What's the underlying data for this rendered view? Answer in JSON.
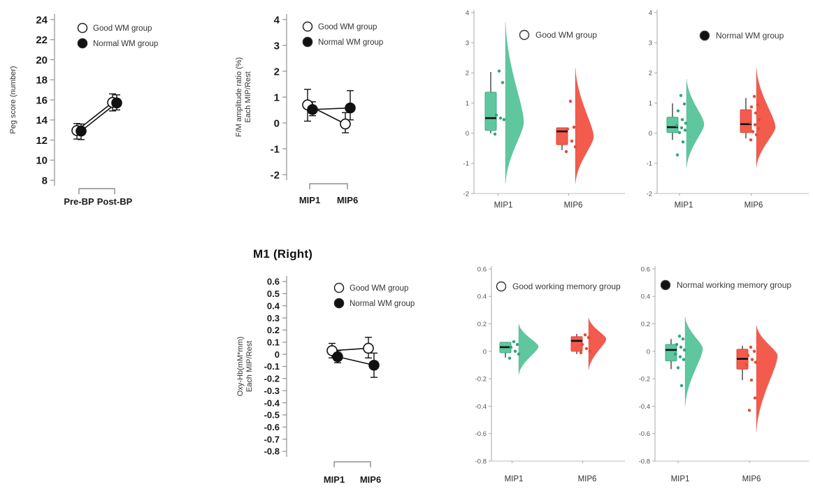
{
  "palette": {
    "green": "#5EC79E",
    "green_dark": "#43A983",
    "green_point": "#33A47B",
    "red": "#F35B4D",
    "red_dark": "#D8483B",
    "red_point": "#E24B3B",
    "marker_black": "#111111",
    "axis_gray": "#999999"
  },
  "chart_data": [
    {
      "id": "peg_score",
      "type": "line-error",
      "title": "",
      "ylabel_lines": [
        "Peg score (number)"
      ],
      "ylim": [
        8,
        24
      ],
      "ytick_values": [
        24,
        22,
        20,
        18,
        16,
        14,
        12,
        10,
        8
      ],
      "ytick_labels": [
        "24",
        "22",
        "20",
        "18",
        "16",
        "14",
        "12",
        "10",
        "8"
      ],
      "categories": [
        "Pre-BP",
        "Post-BP"
      ],
      "legend": [
        {
          "label": "Good WM group",
          "marker": "open"
        },
        {
          "label": "Normal WM group",
          "marker": "filled"
        }
      ],
      "series": [
        {
          "name": "Good WM group",
          "marker": "open",
          "values": [
            12.95,
            15.75
          ],
          "err_lo": [
            12.1,
            14.9
          ],
          "err_hi": [
            13.65,
            16.6
          ]
        },
        {
          "name": "Normal WM group",
          "marker": "filled",
          "values": [
            12.9,
            15.7
          ],
          "err_lo": [
            12.05,
            15.0
          ],
          "err_hi": [
            13.6,
            16.5
          ]
        }
      ]
    },
    {
      "id": "fm_ratio",
      "type": "line-error",
      "title": "",
      "ylabel_lines": [
        "F/M amplitude ratio (%)",
        "Each MIP/Rest"
      ],
      "ylim": [
        -2,
        4
      ],
      "ytick_values": [
        4,
        3,
        2,
        1,
        0,
        -1,
        -2
      ],
      "ytick_labels": [
        "4",
        "3",
        "2",
        "1",
        "0",
        "-1",
        "-2"
      ],
      "categories": [
        "MIP1",
        "MIP6"
      ],
      "legend": [
        {
          "label": "Good WM group",
          "marker": "open"
        },
        {
          "label": "Normal WM group",
          "marker": "filled"
        }
      ],
      "series": [
        {
          "name": "Good WM group",
          "marker": "open",
          "values": [
            0.7,
            -0.04
          ],
          "err_lo": [
            0.07,
            -0.38
          ],
          "err_hi": [
            1.3,
            0.4
          ]
        },
        {
          "name": "Normal WM group",
          "marker": "filled",
          "values": [
            0.52,
            0.58
          ],
          "err_lo": [
            0.28,
            0.12
          ],
          "err_hi": [
            0.82,
            1.25
          ]
        }
      ]
    },
    {
      "id": "fm_raincloud_good",
      "type": "raincloud",
      "ylim": [
        -2,
        4
      ],
      "ytick_values": [
        4,
        3,
        2,
        1,
        0,
        -1,
        -2
      ],
      "ytick_labels": [
        "4",
        "3",
        "2",
        "1",
        "0",
        "-1",
        "-2"
      ],
      "legend": {
        "label": "Good WM group",
        "marker": "open"
      },
      "groups": [
        {
          "category": "MIP1",
          "color_key": "green",
          "box": {
            "lo": 0.0,
            "q1": 0.09,
            "median": 0.5,
            "q3": 1.36,
            "hi": 2.03
          },
          "points": [
            2.06,
            1.68,
            0.6,
            0.5,
            0.45,
            -0.03
          ],
          "violin": {
            "min": -1.67,
            "max": 3.68,
            "mode": 0.36
          }
        },
        {
          "category": "MIP6",
          "color_key": "red",
          "box": {
            "lo": -0.56,
            "q1": -0.38,
            "median": 0.06,
            "q3": 0.18,
            "hi": 0.18
          },
          "points": [
            1.06,
            0.2,
            0.14,
            -0.26,
            -0.45,
            -0.61
          ],
          "violin": {
            "min": -1.67,
            "max": 2.17,
            "mode": -0.12
          }
        }
      ]
    },
    {
      "id": "fm_raincloud_normal",
      "type": "raincloud",
      "ylim": [
        -2,
        4
      ],
      "ytick_values": [
        4,
        3,
        2,
        1,
        0,
        -1,
        -2
      ],
      "ytick_labels": [
        "4",
        "3",
        "2",
        "1",
        "0",
        "-1",
        "-2"
      ],
      "legend": {
        "label": "Normal WM group",
        "marker": "filled"
      },
      "groups": [
        {
          "category": "MIP1",
          "color_key": "green",
          "box": {
            "lo": -0.22,
            "q1": 0.02,
            "median": 0.2,
            "q3": 0.53,
            "hi": 0.99
          },
          "points": [
            1.25,
            0.97,
            0.74,
            0.45,
            0.33,
            0.25,
            0.18,
            0.1,
            0.02,
            -0.29,
            -0.72
          ],
          "violin": {
            "min": -1.14,
            "max": 1.8,
            "mode": 0.3
          }
        },
        {
          "category": "MIP6",
          "color_key": "red",
          "box": {
            "lo": -0.17,
            "q1": 0.02,
            "median": 0.3,
            "q3": 0.78,
            "hi": 1.17
          },
          "points": [
            1.22,
            0.94,
            0.87,
            0.67,
            0.45,
            0.35,
            0.28,
            0.15,
            0.05,
            -0.05,
            -0.22
          ],
          "violin": {
            "min": -1.14,
            "max": 2.17,
            "mode": 0.2
          }
        }
      ]
    },
    {
      "id": "oxyhb",
      "type": "line-error",
      "title": "M1 (Right)",
      "ylabel_lines": [
        "Oxy-Hb(mM*mm)",
        "Each MIP/Rest"
      ],
      "ylim": [
        -0.8,
        0.6
      ],
      "ytick_values": [
        0.6,
        0.5,
        0.4,
        0.3,
        0.2,
        0.1,
        0,
        -0.1,
        -0.2,
        -0.3,
        -0.4,
        -0.5,
        -0.6,
        -0.7,
        -0.8
      ],
      "ytick_labels": [
        "0.6",
        "0.5",
        "0.4",
        "0.3",
        "0.2",
        "0.1",
        "0",
        "-0.1",
        "-0.2",
        "-0.3",
        "-0.4",
        "-0.5",
        "-0.6",
        "-0.7",
        "-0.8"
      ],
      "categories": [
        "MIP1",
        "MIP6"
      ],
      "legend": [
        {
          "label": "Good WM group",
          "marker": "open"
        },
        {
          "label": "Normal WM group",
          "marker": "filled"
        }
      ],
      "series": [
        {
          "name": "Good WM group",
          "marker": "open",
          "values": [
            0.03,
            0.05
          ],
          "err_lo": [
            -0.03,
            -0.03
          ],
          "err_hi": [
            0.09,
            0.14
          ]
        },
        {
          "name": "Normal WM group",
          "marker": "filled",
          "values": [
            -0.02,
            -0.09
          ],
          "err_lo": [
            -0.07,
            -0.19
          ],
          "err_hi": [
            0.03,
            0.01
          ]
        }
      ]
    },
    {
      "id": "oxyhb_raincloud_good",
      "type": "raincloud",
      "ylim": [
        -0.8,
        0.6
      ],
      "ytick_values": [
        0.6,
        0.4,
        0.2,
        0,
        -0.2,
        -0.4,
        -0.6,
        -0.8
      ],
      "ytick_labels": [
        "0.6",
        "0.4",
        "0.2",
        "0",
        "-0.2",
        "-0.4",
        "-0.6",
        "-0.8"
      ],
      "legend": {
        "label": "Good working memory group",
        "marker": "open"
      },
      "groups": [
        {
          "category": "MIP1",
          "color_key": "green",
          "box": {
            "lo": -0.046,
            "q1": -0.01,
            "median": 0.03,
            "q3": 0.066,
            "hi": 0.066
          },
          "points": [
            0.07,
            0.05,
            0.03,
            0.0,
            -0.02,
            -0.05
          ],
          "violin": {
            "min": -0.17,
            "max": 0.2,
            "mode": 0.035
          }
        },
        {
          "category": "MIP6",
          "color_key": "red",
          "box": {
            "lo": -0.02,
            "q1": 0.0,
            "median": 0.076,
            "q3": 0.107,
            "hi": 0.127
          },
          "points": [
            0.12,
            0.1,
            0.05,
            0.02,
            0.0,
            -0.01
          ],
          "violin": {
            "min": -0.135,
            "max": 0.245,
            "mode": 0.09
          }
        }
      ]
    },
    {
      "id": "oxyhb_raincloud_normal",
      "type": "raincloud",
      "ylim": [
        -0.8,
        0.6
      ],
      "ytick_values": [
        0.6,
        0.4,
        0.2,
        0,
        -0.2,
        -0.4,
        -0.6,
        -0.8
      ],
      "ytick_labels": [
        "0.6",
        "0.4",
        "0.2",
        "0",
        "-0.2",
        "-0.4",
        "-0.6",
        "-0.8"
      ],
      "legend": {
        "label": "Normal working memory group",
        "marker": "filled"
      },
      "groups": [
        {
          "category": "MIP1",
          "color_key": "green",
          "box": {
            "lo": -0.13,
            "q1": -0.07,
            "median": 0.01,
            "q3": 0.05,
            "hi": 0.09
          },
          "points": [
            0.11,
            0.09,
            0.05,
            0.03,
            0.01,
            -0.02,
            -0.04,
            -0.06,
            -0.12,
            -0.25
          ],
          "violin": {
            "min": -0.4,
            "max": 0.25,
            "mode": 0.02
          }
        },
        {
          "category": "MIP6",
          "color_key": "red",
          "box": {
            "lo": -0.21,
            "q1": -0.13,
            "median": -0.055,
            "q3": 0.015,
            "hi": 0.04
          },
          "points": [
            0.03,
            0.0,
            -0.03,
            -0.06,
            -0.08,
            -0.1,
            -0.21,
            -0.34,
            -0.43
          ],
          "violin": {
            "min": -0.59,
            "max": 0.19,
            "mode": -0.03
          }
        }
      ]
    }
  ]
}
